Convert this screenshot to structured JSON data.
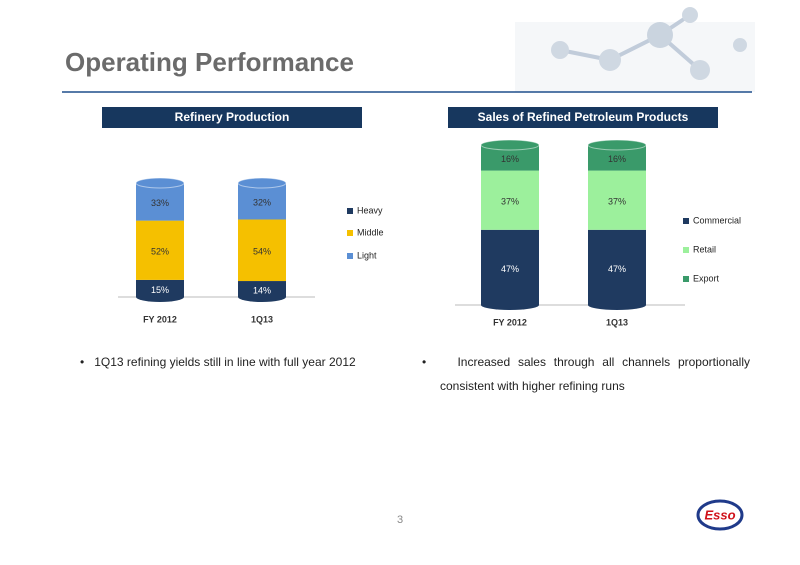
{
  "title": "Operating Performance",
  "chart_data": [
    {
      "type": "bar",
      "stacked": true,
      "title": "Refinery Production",
      "categories": [
        "FY 2012",
        "1Q13"
      ],
      "legend": "right",
      "series": [
        {
          "name": "Heavy",
          "color": "#1f3a60",
          "values": [
            15,
            14
          ],
          "value_labels": [
            "15%",
            "14%"
          ]
        },
        {
          "name": "Middle",
          "color": "#f5c000",
          "values": [
            52,
            54
          ],
          "value_labels": [
            "52%",
            "54%"
          ]
        },
        {
          "name": "Light",
          "color": "#5b8fd4",
          "values": [
            33,
            32
          ],
          "value_labels": [
            "33%",
            "32%"
          ]
        }
      ]
    },
    {
      "type": "bar",
      "stacked": true,
      "title": "Sales of Refined Petroleum Products",
      "categories": [
        "FY 2012",
        "1Q13"
      ],
      "legend": "right",
      "series": [
        {
          "name": "Commercial",
          "color": "#1f3a60",
          "values": [
            47,
            47
          ],
          "value_labels": [
            "47%",
            "47%"
          ]
        },
        {
          "name": "Retail",
          "color": "#9cf09c",
          "values": [
            37,
            37
          ],
          "value_labels": [
            "37%",
            "37%"
          ]
        },
        {
          "name": "Export",
          "color": "#3a9a6a",
          "values": [
            16,
            16
          ],
          "value_labels": [
            "16%",
            "16%"
          ]
        }
      ]
    }
  ],
  "bullets": [
    "1Q13 refining yields still in line with full year 2012",
    "Increased sales through all channels proportionally consistent with higher refining runs"
  ],
  "page_number": "3",
  "logo": "Esso"
}
